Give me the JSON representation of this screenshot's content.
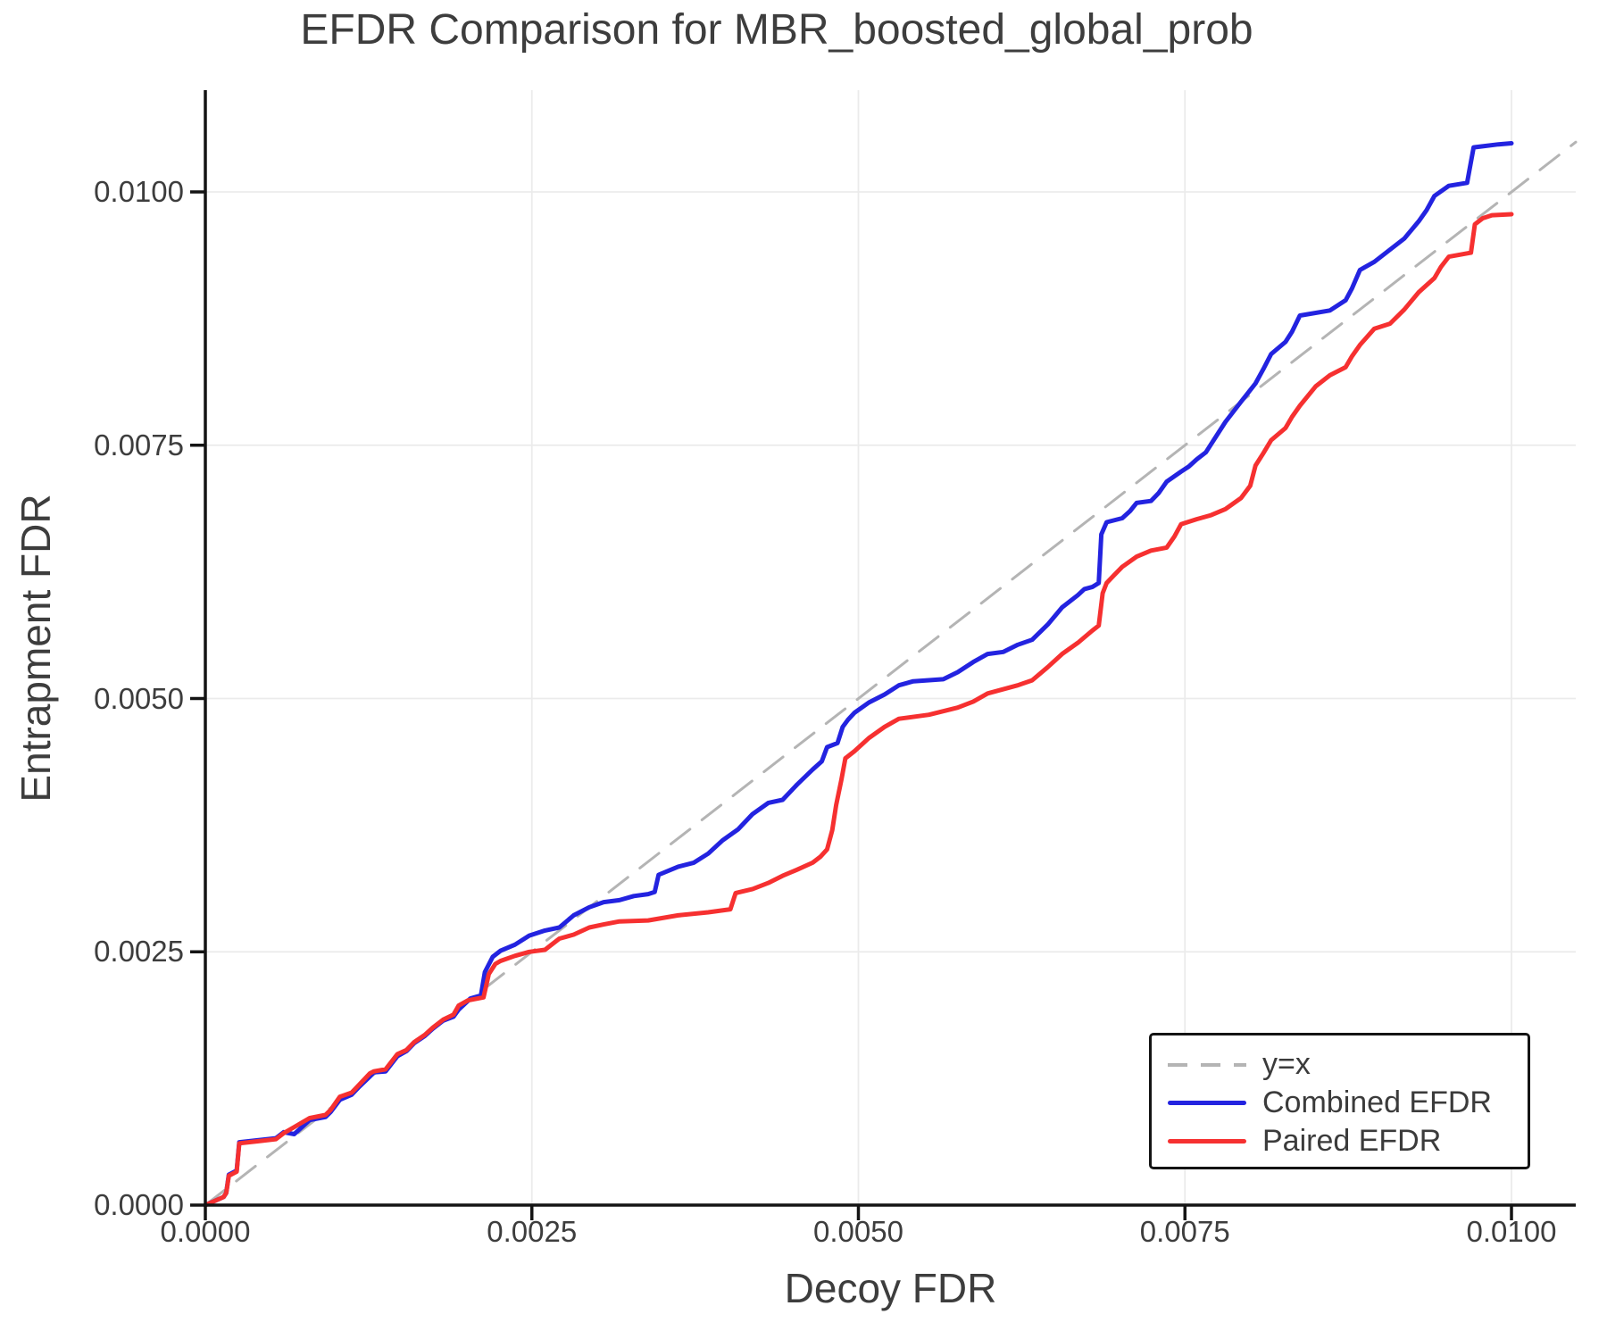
{
  "figure": {
    "title": "EFDR Comparison for MBR_boosted_global_prob",
    "xlabel": "Decoy FDR",
    "ylabel": "Entrapment FDR"
  },
  "chart_data": {
    "type": "line",
    "title": "EFDR Comparison for MBR_boosted_global_prob",
    "xlabel": "Decoy FDR",
    "ylabel": "Entrapment FDR",
    "xlim": [
      0,
      0.010492
    ],
    "ylim": [
      0,
      0.011004
    ],
    "grid": true,
    "legend_position": "lower right",
    "colors": {
      "combined": "#2323e0",
      "paired": "#f63030",
      "identity": "#b4b4b4",
      "gridline": "#ebebeb",
      "axis": "#141414",
      "text": "#3d3d3d"
    },
    "x_ticks": [
      {
        "value": 0.0,
        "label": "0.0000"
      },
      {
        "value": 0.0025,
        "label": "0.0025"
      },
      {
        "value": 0.005,
        "label": "0.0050"
      },
      {
        "value": 0.0075,
        "label": "0.0075"
      },
      {
        "value": 0.01,
        "label": "0.0100"
      }
    ],
    "y_ticks": [
      {
        "value": 0.0,
        "label": "0.0000"
      },
      {
        "value": 0.0025,
        "label": "0.0025"
      },
      {
        "value": 0.005,
        "label": "0.0050"
      },
      {
        "value": 0.0075,
        "label": "0.0075"
      },
      {
        "value": 0.01,
        "label": "0.0100"
      }
    ],
    "legend": {
      "entries": [
        {
          "label": "y=x",
          "style": "dashed",
          "color": "#b4b4b4"
        },
        {
          "label": "Combined EFDR",
          "style": "solid",
          "color": "#2323e0"
        },
        {
          "label": "Paired EFDR",
          "style": "solid",
          "color": "#f63030"
        }
      ]
    },
    "series": [
      {
        "name": "y=x",
        "style": "dashed",
        "color": "#b4b4b4",
        "width": 3,
        "points": [
          [
            0,
            0
          ],
          [
            0.010492,
            0.010492
          ]
        ]
      },
      {
        "name": "Combined EFDR",
        "style": "solid",
        "color": "#2323e0",
        "width": 5,
        "points": [
          [
            0.0,
            0.0
          ],
          [
            0.00014,
            8e-05
          ],
          [
            0.00016,
            0.00012
          ],
          [
            0.00018,
            0.0003
          ],
          [
            0.00024,
            0.00034
          ],
          [
            0.00026,
            0.00062
          ],
          [
            0.0004,
            0.00064
          ],
          [
            0.00054,
            0.00066
          ],
          [
            0.0006,
            0.00072
          ],
          [
            0.00068,
            0.0007
          ],
          [
            0.0008,
            0.00084
          ],
          [
            0.00092,
            0.00087
          ],
          [
            0.00096,
            0.00092
          ],
          [
            0.00103,
            0.00104
          ],
          [
            0.00112,
            0.00109
          ],
          [
            0.00118,
            0.00117
          ],
          [
            0.00126,
            0.00127
          ],
          [
            0.00129,
            0.00131
          ],
          [
            0.00138,
            0.00132
          ],
          [
            0.00147,
            0.00147
          ],
          [
            0.00154,
            0.00152
          ],
          [
            0.0016,
            0.0016
          ],
          [
            0.00168,
            0.00167
          ],
          [
            0.00174,
            0.00174
          ],
          [
            0.00182,
            0.00182
          ],
          [
            0.0019,
            0.00186
          ],
          [
            0.00194,
            0.00193
          ],
          [
            0.00203,
            0.00204
          ],
          [
            0.00211,
            0.00207
          ],
          [
            0.00214,
            0.0023
          ],
          [
            0.0022,
            0.00245
          ],
          [
            0.00226,
            0.00251
          ],
          [
            0.00237,
            0.00257
          ],
          [
            0.00248,
            0.00266
          ],
          [
            0.0026,
            0.00271
          ],
          [
            0.00271,
            0.00274
          ],
          [
            0.00282,
            0.00286
          ],
          [
            0.00294,
            0.00294
          ],
          [
            0.00305,
            0.00299
          ],
          [
            0.00317,
            0.00301
          ],
          [
            0.00328,
            0.00305
          ],
          [
            0.00339,
            0.00307
          ],
          [
            0.00344,
            0.00309
          ],
          [
            0.00347,
            0.00326
          ],
          [
            0.00362,
            0.00334
          ],
          [
            0.00374,
            0.00338
          ],
          [
            0.00385,
            0.00347
          ],
          [
            0.00396,
            0.0036
          ],
          [
            0.00408,
            0.00371
          ],
          [
            0.00419,
            0.00386
          ],
          [
            0.00431,
            0.00397
          ],
          [
            0.00442,
            0.004
          ],
          [
            0.00453,
            0.00415
          ],
          [
            0.00465,
            0.0043
          ],
          [
            0.00472,
            0.00438
          ],
          [
            0.00476,
            0.00452
          ],
          [
            0.00484,
            0.00456
          ],
          [
            0.00488,
            0.00472
          ],
          [
            0.00492,
            0.00479
          ],
          [
            0.00497,
            0.00486
          ],
          [
            0.00508,
            0.00496
          ],
          [
            0.0052,
            0.00504
          ],
          [
            0.00531,
            0.00513
          ],
          [
            0.00542,
            0.00517
          ],
          [
            0.00565,
            0.00519
          ],
          [
            0.00576,
            0.00526
          ],
          [
            0.00588,
            0.00536
          ],
          [
            0.00599,
            0.00544
          ],
          [
            0.00611,
            0.00546
          ],
          [
            0.00622,
            0.00553
          ],
          [
            0.00633,
            0.00558
          ],
          [
            0.00645,
            0.00573
          ],
          [
            0.00656,
            0.0059
          ],
          [
            0.00668,
            0.00602
          ],
          [
            0.00673,
            0.00608
          ],
          [
            0.00679,
            0.0061
          ],
          [
            0.00684,
            0.00614
          ],
          [
            0.00686,
            0.00662
          ],
          [
            0.0069,
            0.00674
          ],
          [
            0.00702,
            0.00678
          ],
          [
            0.00708,
            0.00685
          ],
          [
            0.00713,
            0.00693
          ],
          [
            0.00724,
            0.00695
          ],
          [
            0.0073,
            0.00703
          ],
          [
            0.00736,
            0.00714
          ],
          [
            0.00747,
            0.00724
          ],
          [
            0.00753,
            0.00729
          ],
          [
            0.00759,
            0.00736
          ],
          [
            0.00766,
            0.00743
          ],
          [
            0.00772,
            0.00755
          ],
          [
            0.00781,
            0.00773
          ],
          [
            0.00793,
            0.00793
          ],
          [
            0.00804,
            0.00811
          ],
          [
            0.0081,
            0.00825
          ],
          [
            0.00816,
            0.0084
          ],
          [
            0.00827,
            0.00852
          ],
          [
            0.00832,
            0.00862
          ],
          [
            0.00838,
            0.00878
          ],
          [
            0.00861,
            0.00883
          ],
          [
            0.00873,
            0.00893
          ],
          [
            0.00878,
            0.00905
          ],
          [
            0.00884,
            0.00923
          ],
          [
            0.00895,
            0.00931
          ],
          [
            0.00907,
            0.00943
          ],
          [
            0.00918,
            0.00954
          ],
          [
            0.00929,
            0.00971
          ],
          [
            0.00935,
            0.00982
          ],
          [
            0.00941,
            0.00996
          ],
          [
            0.00952,
            0.01006
          ],
          [
            0.00966,
            0.01009
          ],
          [
            0.00971,
            0.01044
          ],
          [
            0.0099,
            0.01047
          ],
          [
            0.01,
            0.01048
          ]
        ]
      },
      {
        "name": "Paired EFDR",
        "style": "solid",
        "color": "#f63030",
        "width": 5,
        "points": [
          [
            0.0,
            0.0
          ],
          [
            0.00014,
            8e-05
          ],
          [
            0.00016,
            0.00012
          ],
          [
            0.00018,
            0.00029
          ],
          [
            0.00024,
            0.00033
          ],
          [
            0.00026,
            0.00061
          ],
          [
            0.0004,
            0.00063
          ],
          [
            0.00054,
            0.00065
          ],
          [
            0.0006,
            0.00071
          ],
          [
            0.00068,
            0.00077
          ],
          [
            0.0008,
            0.00086
          ],
          [
            0.00092,
            0.00089
          ],
          [
            0.00096,
            0.00094
          ],
          [
            0.00103,
            0.00107
          ],
          [
            0.00112,
            0.00111
          ],
          [
            0.00118,
            0.00119
          ],
          [
            0.00126,
            0.0013
          ],
          [
            0.00129,
            0.00132
          ],
          [
            0.00138,
            0.00134
          ],
          [
            0.00147,
            0.00149
          ],
          [
            0.00154,
            0.00153
          ],
          [
            0.0016,
            0.00161
          ],
          [
            0.00168,
            0.00168
          ],
          [
            0.00174,
            0.00175
          ],
          [
            0.00182,
            0.00183
          ],
          [
            0.0019,
            0.00188
          ],
          [
            0.00194,
            0.00197
          ],
          [
            0.00201,
            0.00202
          ],
          [
            0.00213,
            0.00205
          ],
          [
            0.00217,
            0.00228
          ],
          [
            0.00222,
            0.00238
          ],
          [
            0.00226,
            0.00241
          ],
          [
            0.00237,
            0.00246
          ],
          [
            0.00248,
            0.0025
          ],
          [
            0.0026,
            0.00252
          ],
          [
            0.00271,
            0.00263
          ],
          [
            0.00282,
            0.00267
          ],
          [
            0.00294,
            0.00274
          ],
          [
            0.00305,
            0.00277
          ],
          [
            0.00317,
            0.0028
          ],
          [
            0.00339,
            0.00281
          ],
          [
            0.00362,
            0.00286
          ],
          [
            0.00385,
            0.00289
          ],
          [
            0.00402,
            0.00292
          ],
          [
            0.00406,
            0.00308
          ],
          [
            0.00419,
            0.00312
          ],
          [
            0.00431,
            0.00318
          ],
          [
            0.00442,
            0.00325
          ],
          [
            0.00453,
            0.00331
          ],
          [
            0.00465,
            0.00338
          ],
          [
            0.00471,
            0.00344
          ],
          [
            0.00476,
            0.00351
          ],
          [
            0.0048,
            0.0037
          ],
          [
            0.00483,
            0.00395
          ],
          [
            0.00487,
            0.0042
          ],
          [
            0.0049,
            0.00441
          ],
          [
            0.00497,
            0.00448
          ],
          [
            0.00508,
            0.00461
          ],
          [
            0.0052,
            0.00472
          ],
          [
            0.00531,
            0.0048
          ],
          [
            0.00554,
            0.00484
          ],
          [
            0.00576,
            0.00491
          ],
          [
            0.00588,
            0.00497
          ],
          [
            0.00599,
            0.00505
          ],
          [
            0.00622,
            0.00513
          ],
          [
            0.00633,
            0.00518
          ],
          [
            0.00645,
            0.00531
          ],
          [
            0.00656,
            0.00544
          ],
          [
            0.00668,
            0.00555
          ],
          [
            0.00679,
            0.00567
          ],
          [
            0.00684,
            0.00572
          ],
          [
            0.00687,
            0.00604
          ],
          [
            0.0069,
            0.00614
          ],
          [
            0.00696,
            0.00622
          ],
          [
            0.00702,
            0.0063
          ],
          [
            0.00713,
            0.0064
          ],
          [
            0.00724,
            0.00646
          ],
          [
            0.00736,
            0.00649
          ],
          [
            0.00742,
            0.0066
          ],
          [
            0.00747,
            0.00672
          ],
          [
            0.00759,
            0.00677
          ],
          [
            0.0077,
            0.00681
          ],
          [
            0.00781,
            0.00687
          ],
          [
            0.00793,
            0.00698
          ],
          [
            0.008,
            0.0071
          ],
          [
            0.00804,
            0.0073
          ],
          [
            0.0081,
            0.00742
          ],
          [
            0.00816,
            0.00755
          ],
          [
            0.00827,
            0.00767
          ],
          [
            0.00832,
            0.00778
          ],
          [
            0.00838,
            0.00789
          ],
          [
            0.0085,
            0.00808
          ],
          [
            0.00861,
            0.00819
          ],
          [
            0.00873,
            0.00827
          ],
          [
            0.00878,
            0.00838
          ],
          [
            0.00884,
            0.00849
          ],
          [
            0.00895,
            0.00865
          ],
          [
            0.00907,
            0.0087
          ],
          [
            0.00918,
            0.00884
          ],
          [
            0.00929,
            0.00901
          ],
          [
            0.00941,
            0.00915
          ],
          [
            0.00946,
            0.00926
          ],
          [
            0.00952,
            0.00936
          ],
          [
            0.00969,
            0.0094
          ],
          [
            0.00972,
            0.00968
          ],
          [
            0.00978,
            0.00974
          ],
          [
            0.00985,
            0.00977
          ],
          [
            0.01,
            0.00978
          ]
        ]
      }
    ]
  }
}
